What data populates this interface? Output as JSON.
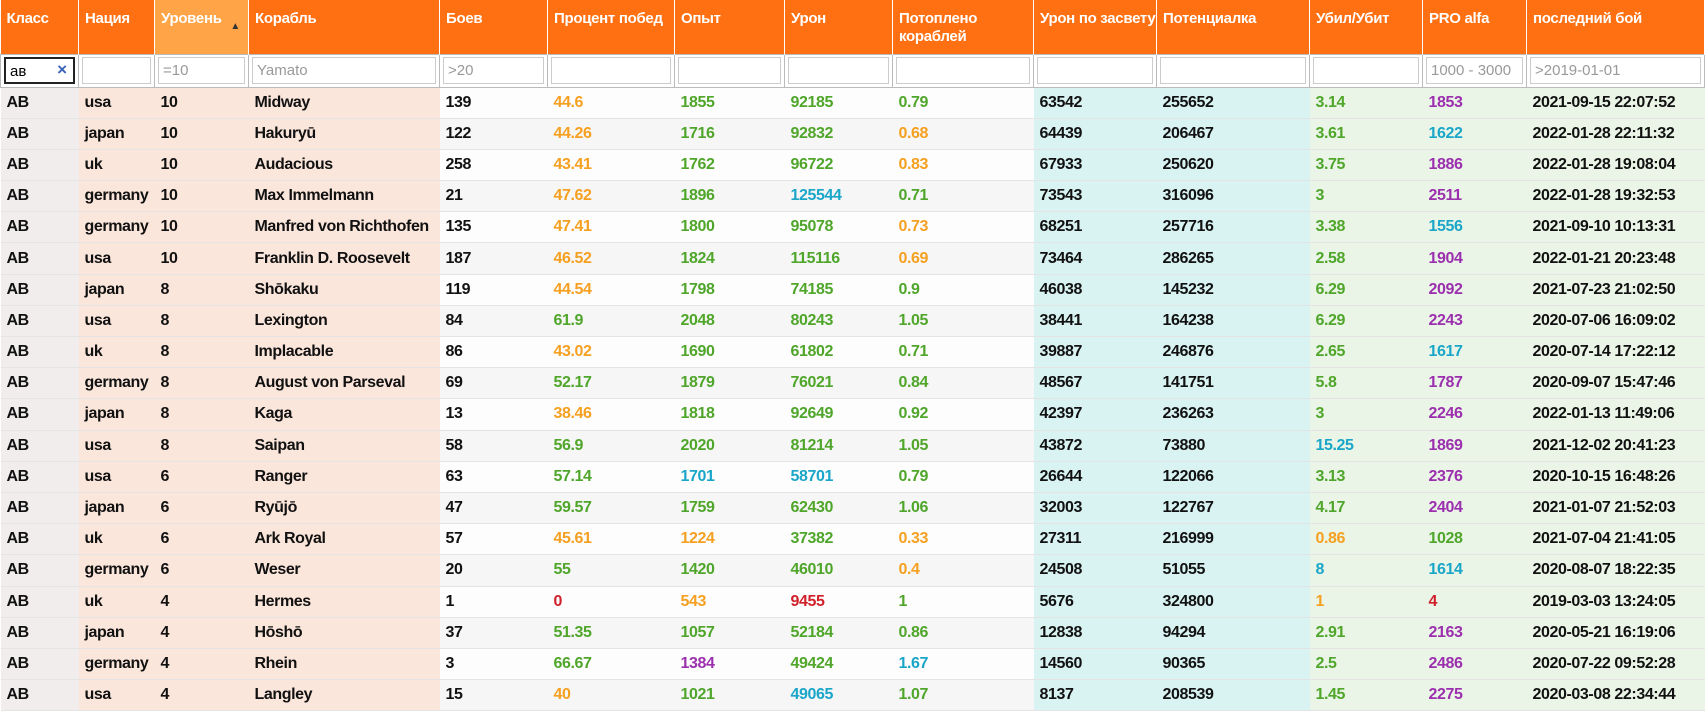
{
  "table": {
    "columns": [
      "Класс",
      "Нация",
      "Уровень",
      "Корабль",
      "Боев",
      "Процент побед",
      "Опыт",
      "Урон",
      "Потоплено кораблей",
      "Урон по засвету",
      "Потенциалка",
      "Убил/Убит",
      "PRO alfa",
      "последний бой"
    ],
    "sorted_column": 2,
    "filters": [
      "ав",
      "",
      "=10",
      "Yamato",
      ">20",
      "",
      "",
      "",
      "",
      "",
      "",
      "",
      "1000 - 3000",
      ">2019-01-01"
    ],
    "active_filter": 0,
    "clear_button": "×",
    "colored_columns": [
      5,
      6,
      7,
      8,
      11,
      12
    ],
    "rows": [
      {
        "cells": [
          "AB",
          "usa",
          10,
          "Midway",
          139,
          44.6,
          1855,
          92185,
          0.79,
          63542,
          255652,
          3.14,
          1853,
          "2021-09-15 22:07:52"
        ],
        "colors": [
          "#f5a020",
          "#4fa62a",
          "#4fa62a",
          "#4fa62a",
          "#4fa62a",
          "#9b2fae"
        ]
      },
      {
        "cells": [
          "AB",
          "japan",
          10,
          "Hakuryū",
          122,
          44.26,
          1716,
          92832,
          0.68,
          64439,
          206467,
          3.61,
          1622
        ],
        "colors": [
          "#f5a020",
          "#4fa62a",
          "#4fa62a",
          "#f5a020",
          "#4fa62a",
          "#1aa6c8"
        ],
        "date": "2022-01-28 22:11:32"
      },
      {
        "cells": [
          "AB",
          "uk",
          10,
          "Audacious",
          258,
          43.41,
          1762,
          96722,
          0.83,
          67933,
          250620,
          3.75,
          1886,
          "2022-01-28 19:08:04"
        ],
        "colors": [
          "#f5a020",
          "#4fa62a",
          "#4fa62a",
          "#f5a020",
          "#4fa62a",
          "#9b2fae"
        ]
      },
      {
        "cells": [
          "AB",
          "germany",
          10,
          "Max Immelmann",
          21,
          47.62,
          1896,
          125544,
          0.71,
          73543,
          316096,
          3,
          2511,
          "2022-01-28 19:32:53"
        ],
        "colors": [
          "#f5a020",
          "#4fa62a",
          "#1aa6c8",
          "#4fa62a",
          "#4fa62a",
          "#9b2fae"
        ]
      },
      {
        "cells": [
          "AB",
          "germany",
          10,
          "Manfred von Richthofen",
          135,
          47.41,
          1800,
          95078,
          0.73,
          68251,
          257716,
          3.38,
          1556,
          "2021-09-10 10:13:31"
        ],
        "colors": [
          "#f5a020",
          "#4fa62a",
          "#4fa62a",
          "#f5a020",
          "#4fa62a",
          "#1aa6c8"
        ]
      },
      {
        "cells": [
          "AB",
          "usa",
          10,
          "Franklin D. Roosevelt",
          187,
          46.52,
          1824,
          115116,
          0.69,
          73464,
          286265,
          2.58,
          1904,
          "2022-01-21 20:23:48"
        ],
        "colors": [
          "#f5a020",
          "#4fa62a",
          "#4fa62a",
          "#f5a020",
          "#4fa62a",
          "#9b2fae"
        ]
      },
      {
        "cells": [
          "AB",
          "japan",
          8,
          "Shōkaku",
          119,
          44.54,
          1798,
          74185,
          0.9,
          46038,
          145232,
          6.29,
          2092,
          "2021-07-23 21:02:50"
        ],
        "colors": [
          "#f5a020",
          "#4fa62a",
          "#4fa62a",
          "#4fa62a",
          "#4fa62a",
          "#9b2fae"
        ]
      },
      {
        "cells": [
          "AB",
          "usa",
          8,
          "Lexington",
          84,
          61.9,
          2048,
          80243,
          1.05,
          38441,
          164238,
          6.29,
          2243,
          "2020-07-06 16:09:02"
        ],
        "colors": [
          "#4fa62a",
          "#4fa62a",
          "#4fa62a",
          "#4fa62a",
          "#4fa62a",
          "#9b2fae"
        ]
      },
      {
        "cells": [
          "AB",
          "uk",
          8,
          "Implacable",
          86,
          43.02,
          1690,
          61802,
          0.71,
          39887,
          246876,
          2.65,
          1617,
          "2020-07-14 17:22:12"
        ],
        "colors": [
          "#f5a020",
          "#4fa62a",
          "#4fa62a",
          "#4fa62a",
          "#4fa62a",
          "#1aa6c8"
        ]
      },
      {
        "cells": [
          "AB",
          "germany",
          8,
          "August von Parseval",
          69,
          52.17,
          1879,
          76021,
          0.84,
          48567,
          141751,
          5.8,
          1787,
          "2020-09-07 15:47:46"
        ],
        "colors": [
          "#4fa62a",
          "#4fa62a",
          "#4fa62a",
          "#4fa62a",
          "#4fa62a",
          "#9b2fae"
        ]
      },
      {
        "cells": [
          "AB",
          "japan",
          8,
          "Kaga",
          13,
          38.46,
          1818,
          92649,
          0.92,
          42397,
          236263,
          3,
          2246,
          "2022-01-13 11:49:06"
        ],
        "colors": [
          "#f5a020",
          "#4fa62a",
          "#4fa62a",
          "#4fa62a",
          "#4fa62a",
          "#9b2fae"
        ]
      },
      {
        "cells": [
          "AB",
          "usa",
          8,
          "Saipan",
          58,
          56.9,
          2020,
          81214,
          1.05,
          43872,
          73880,
          15.25,
          1869,
          "2021-12-02 20:41:23"
        ],
        "colors": [
          "#4fa62a",
          "#4fa62a",
          "#4fa62a",
          "#4fa62a",
          "#1aa6c8",
          "#9b2fae"
        ]
      },
      {
        "cells": [
          "AB",
          "usa",
          6,
          "Ranger",
          63,
          57.14,
          1701,
          58701,
          0.79,
          26644,
          122066,
          3.13,
          2376,
          "2020-10-15 16:48:26"
        ],
        "colors": [
          "#4fa62a",
          "#1aa6c8",
          "#1aa6c8",
          "#4fa62a",
          "#4fa62a",
          "#9b2fae"
        ]
      },
      {
        "cells": [
          "AB",
          "japan",
          6,
          "Ryūjō",
          47,
          59.57,
          1759,
          62430,
          1.06,
          32003,
          122767,
          4.17,
          2404,
          "2021-01-07 21:52:03"
        ],
        "colors": [
          "#4fa62a",
          "#4fa62a",
          "#4fa62a",
          "#4fa62a",
          "#4fa62a",
          "#9b2fae"
        ]
      },
      {
        "cells": [
          "AB",
          "uk",
          6,
          "Ark Royal",
          57,
          45.61,
          1224,
          37382,
          0.33,
          27311,
          216999,
          0.86,
          1028,
          "2021-07-04 21:41:05"
        ],
        "colors": [
          "#f5a020",
          "#f5a020",
          "#4fa62a",
          "#f5a020",
          "#f5a020",
          "#4fa62a"
        ]
      },
      {
        "cells": [
          "AB",
          "germany",
          6,
          "Weser",
          20,
          55,
          1420,
          46010,
          0.4,
          24508,
          51055,
          8,
          1614,
          "2020-08-07 18:22:35"
        ],
        "colors": [
          "#4fa62a",
          "#4fa62a",
          "#4fa62a",
          "#f5a020",
          "#1aa6c8",
          "#1aa6c8"
        ]
      },
      {
        "cells": [
          "AB",
          "uk",
          4,
          "Hermes",
          1,
          0,
          543,
          9455,
          1,
          5676,
          324800,
          1,
          4,
          "2019-03-03 13:24:05"
        ],
        "colors": [
          "#d0202a",
          "#f5a020",
          "#d0202a",
          "#4fa62a",
          "#f5a020",
          "#d0202a"
        ]
      },
      {
        "cells": [
          "AB",
          "japan",
          4,
          "Hōshō",
          37,
          51.35,
          1057,
          52184,
          0.86,
          12838,
          94294,
          2.91,
          2163,
          "2020-05-21 16:19:06"
        ],
        "colors": [
          "#4fa62a",
          "#4fa62a",
          "#4fa62a",
          "#4fa62a",
          "#4fa62a",
          "#9b2fae"
        ]
      },
      {
        "cells": [
          "AB",
          "germany",
          4,
          "Rhein",
          3,
          66.67,
          1384,
          49424,
          1.67,
          14560,
          90365,
          2.5,
          2486,
          "2020-07-22 09:52:28"
        ],
        "colors": [
          "#4fa62a",
          "#9b2fae",
          "#4fa62a",
          "#1aa6c8",
          "#4fa62a",
          "#9b2fae"
        ]
      },
      {
        "cells": [
          "AB",
          "usa",
          4,
          "Langley",
          15,
          40,
          1021,
          49065,
          1.07,
          8137,
          208539,
          1.45,
          2275,
          "2020-03-08 22:34:44"
        ],
        "colors": [
          "#f5a020",
          "#4fa62a",
          "#1aa6c8",
          "#4fa62a",
          "#4fa62a",
          "#9b2fae"
        ]
      }
    ]
  }
}
